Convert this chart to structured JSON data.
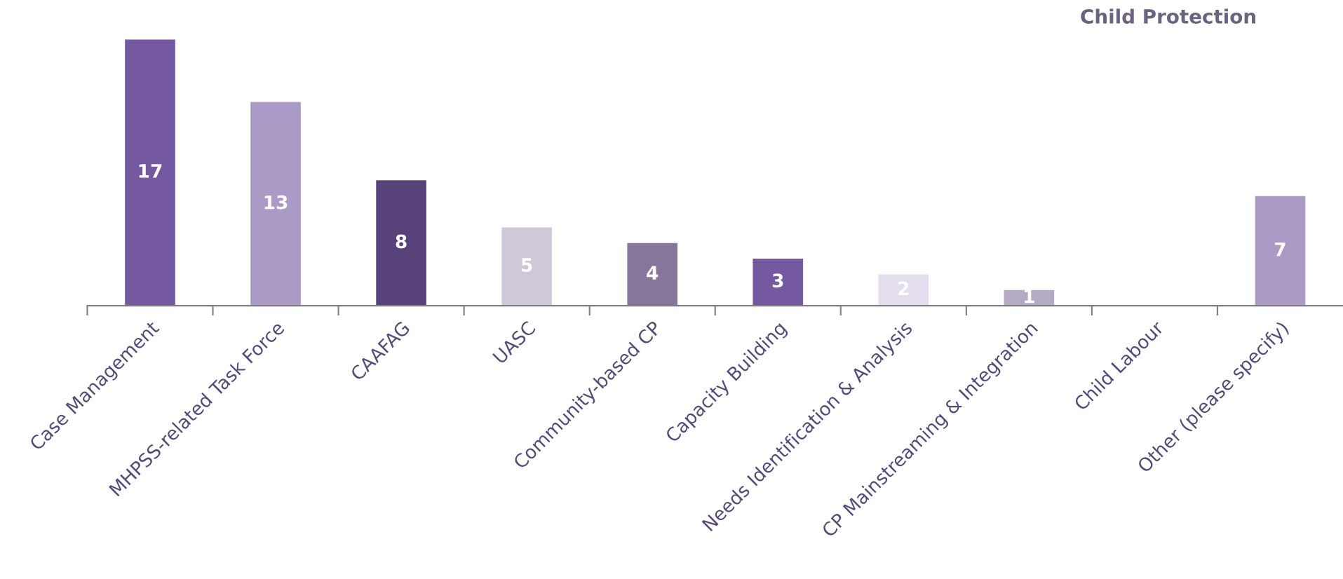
{
  "chart_data": {
    "type": "bar",
    "title": "Child Protection",
    "categories": [
      "Case Management",
      "MHPSS-related Task Force",
      "CAAFAG",
      "UASC",
      "Community-based CP",
      "Capacity Building",
      "Needs Identification & Analysis",
      "CP Mainstreaming & Integration",
      "Child Labour",
      "Other (please specify)"
    ],
    "values": [
      17,
      13,
      8,
      5,
      4,
      3,
      2,
      1,
      0,
      7
    ],
    "colors": [
      "#7459a0",
      "#aa9ac6",
      "#574379",
      "#cfc8d9",
      "#86769b",
      "#7459a0",
      "#e3ddee",
      "#b4aac6",
      "#b4aac6",
      "#aa9ac6"
    ],
    "value_labels": [
      "17",
      "13",
      "8",
      "5",
      "4",
      "3",
      "2",
      "1",
      null,
      "7"
    ],
    "grid": false,
    "legend": false
  }
}
